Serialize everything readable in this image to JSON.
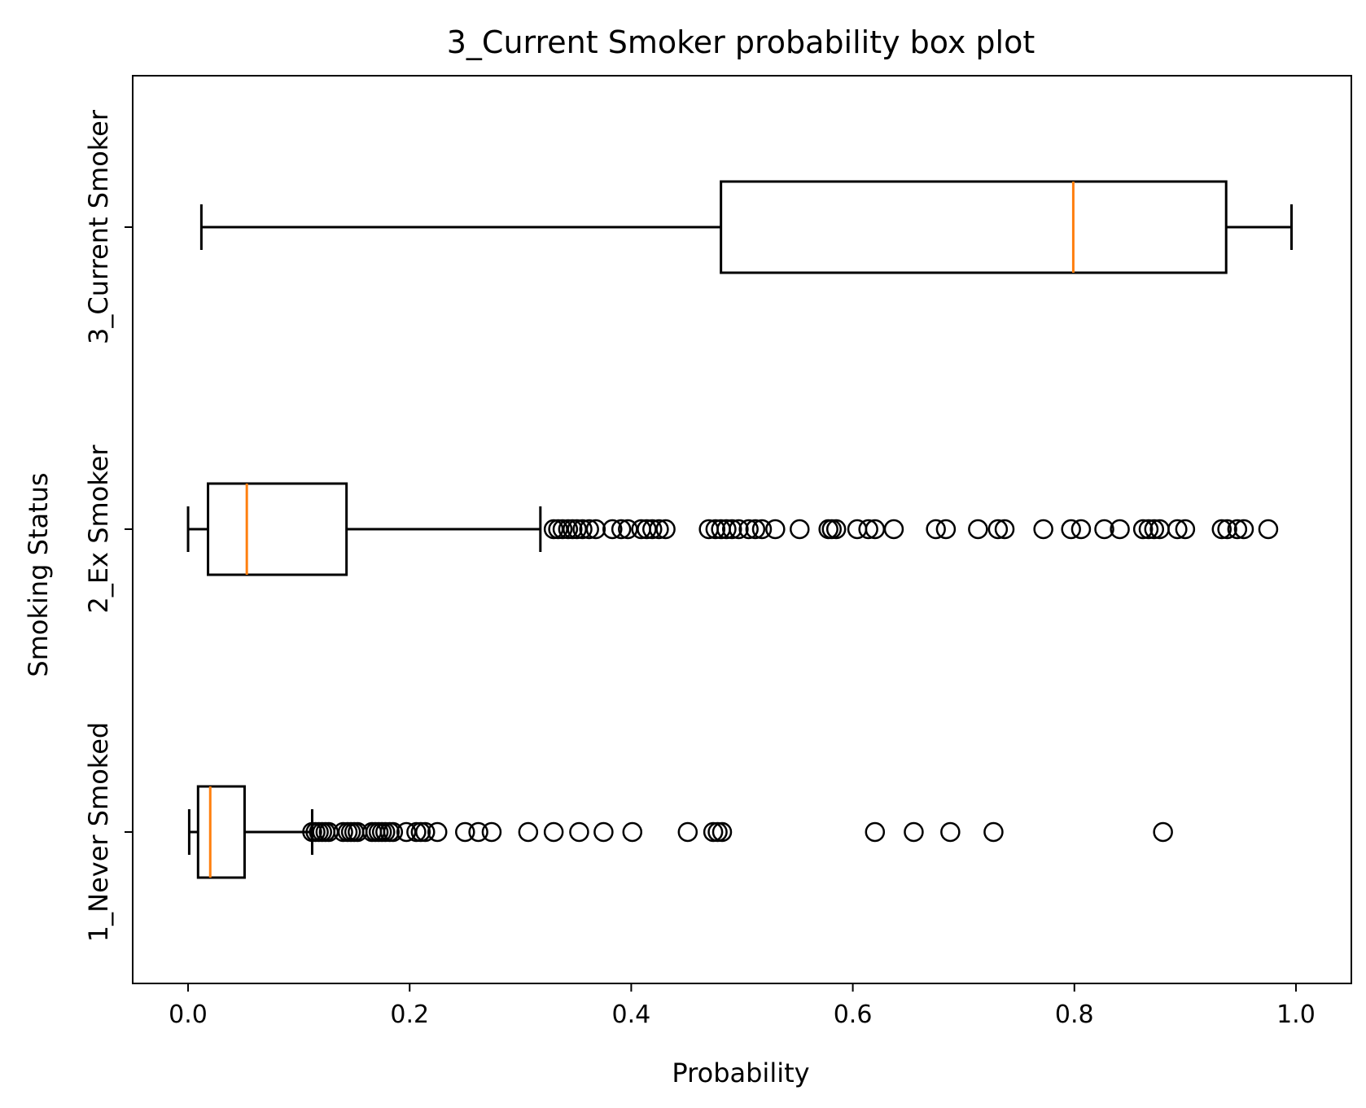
{
  "chart_data": {
    "type": "boxplot",
    "orientation": "horizontal",
    "title": "3_Current Smoker probability box plot",
    "xlabel": "Probability",
    "ylabel": "Smoking Status",
    "xlim": [
      -0.05,
      1.05
    ],
    "xticks": [
      0.0,
      0.2,
      0.4,
      0.6,
      0.8,
      1.0
    ],
    "xtick_labels": [
      "0.0",
      "0.2",
      "0.4",
      "0.6",
      "0.8",
      "1.0"
    ],
    "grid": false,
    "colors": {
      "box": "#000000",
      "median": "#ff7f0e",
      "outlier": "#000000",
      "background": "#ffffff"
    },
    "groups": [
      {
        "label": "1_Never Smoked",
        "whisker_low": 0.001,
        "q1": 0.009,
        "median": 0.02,
        "q3": 0.051,
        "whisker_high": 0.112,
        "outliers": [
          0.112,
          0.115,
          0.118,
          0.121,
          0.124,
          0.127,
          0.14,
          0.144,
          0.147,
          0.15,
          0.153,
          0.166,
          0.169,
          0.172,
          0.175,
          0.178,
          0.182,
          0.185,
          0.197,
          0.206,
          0.21,
          0.214,
          0.225,
          0.25,
          0.262,
          0.274,
          0.307,
          0.33,
          0.353,
          0.375,
          0.401,
          0.451,
          0.474,
          0.478,
          0.482,
          0.62,
          0.655,
          0.688,
          0.727,
          0.88
        ]
      },
      {
        "label": "2_Ex Smoker",
        "whisker_low": 0.0,
        "q1": 0.018,
        "median": 0.053,
        "q3": 0.143,
        "whisker_high": 0.318,
        "outliers": [
          0.33,
          0.334,
          0.338,
          0.343,
          0.347,
          0.351,
          0.356,
          0.362,
          0.368,
          0.383,
          0.391,
          0.397,
          0.409,
          0.414,
          0.419,
          0.425,
          0.431,
          0.47,
          0.476,
          0.481,
          0.486,
          0.491,
          0.497,
          0.506,
          0.512,
          0.518,
          0.53,
          0.552,
          0.578,
          0.581,
          0.585,
          0.604,
          0.614,
          0.62,
          0.637,
          0.675,
          0.684,
          0.713,
          0.731,
          0.737,
          0.772,
          0.797,
          0.806,
          0.827,
          0.841,
          0.862,
          0.867,
          0.872,
          0.877,
          0.893,
          0.9,
          0.933,
          0.938,
          0.947,
          0.953,
          0.975
        ]
      },
      {
        "label": "3_Current Smoker",
        "whisker_low": 0.012,
        "q1": 0.481,
        "median": 0.799,
        "q3": 0.937,
        "whisker_high": 0.996,
        "outliers": []
      }
    ]
  }
}
